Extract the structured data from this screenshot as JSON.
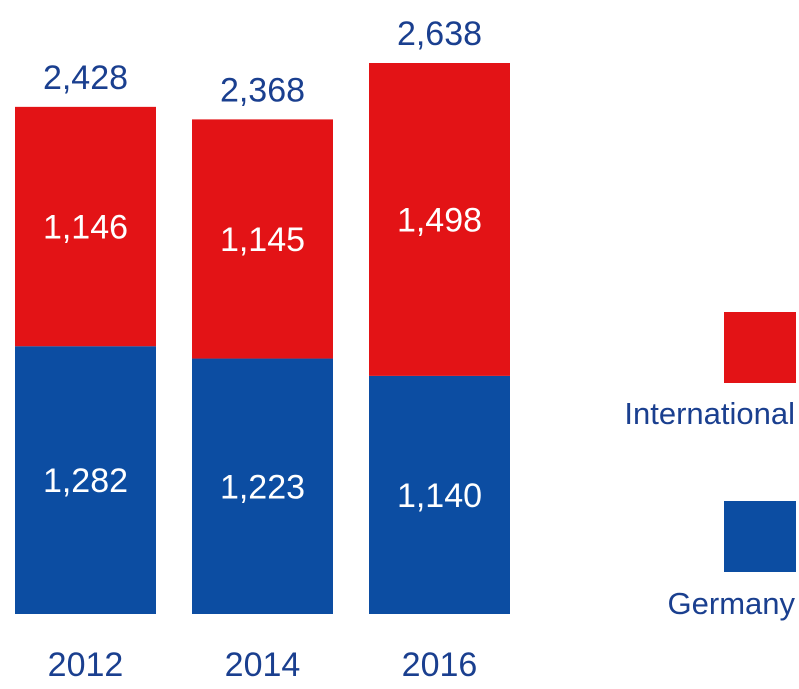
{
  "chart_data": {
    "type": "bar",
    "stacked": true,
    "title": "",
    "xlabel": "",
    "ylabel": "",
    "categories": [
      "2012",
      "2014",
      "2016"
    ],
    "series": [
      {
        "name": "Germany",
        "values": [
          1282,
          1223,
          1140
        ],
        "color": "#0c4da2"
      },
      {
        "name": "International",
        "values": [
          1146,
          1145,
          1498
        ],
        "color": "#e31316"
      }
    ],
    "totals": [
      2428,
      2368,
      2638
    ],
    "segment_labels": {
      "Germany": [
        "1,282",
        "1,223",
        "1,140"
      ],
      "International": [
        "1,146",
        "1,145",
        "1,498"
      ]
    },
    "total_labels": [
      "2,428",
      "2,368",
      "2,638"
    ],
    "ylim": [
      0,
      2638
    ],
    "grid": false,
    "legend_position": "right",
    "legend_order": [
      "International",
      "Germany"
    ],
    "colors": {
      "label_dark": "#1a3f8f",
      "label_light": "#ffffff"
    }
  }
}
